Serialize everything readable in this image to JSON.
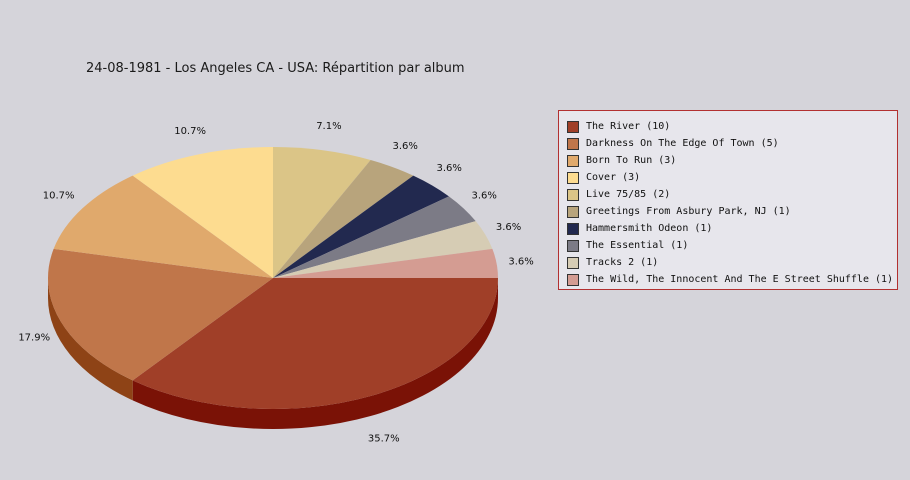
{
  "chart_data": {
    "type": "pie",
    "title": "24-08-1981 - Los Angeles CA - USA:  Répartition par album",
    "legend_position": "right",
    "slices": [
      {
        "label": "The River (10)",
        "value": 10,
        "percent": "35.7%",
        "color": "#a03f28",
        "side_color": "#7a1206"
      },
      {
        "label": "Darkness On The Edge Of Town (5)",
        "value": 5,
        "percent": "17.9%",
        "color": "#c0764a",
        "side_color": "#8e4316"
      },
      {
        "label": "Born To Run (3)",
        "value": 3,
        "percent": "10.7%",
        "color": "#e0a96c",
        "side_color": "#a87938"
      },
      {
        "label": "Cover (3)",
        "value": 3,
        "percent": "10.7%",
        "color": "#fddc90",
        "side_color": "#c9a85c"
      },
      {
        "label": "Live 75/85 (2)",
        "value": 2,
        "percent": "7.1%",
        "color": "#dbc587",
        "side_color": "#a69354"
      },
      {
        "label": "Greetings From Asbury Park, NJ (1)",
        "value": 1,
        "percent": "3.6%",
        "color": "#b8a47c",
        "side_color": "#85724c"
      },
      {
        "label": "Hammersmith Odeon  (1)",
        "value": 1,
        "percent": "3.6%",
        "color": "#22294f",
        "side_color": "#10152e"
      },
      {
        "label": "The Essential (1)",
        "value": 1,
        "percent": "3.6%",
        "color": "#7c7b86",
        "side_color": "#55545e"
      },
      {
        "label": "Tracks 2 (1)",
        "value": 1,
        "percent": "3.6%",
        "color": "#d6ccb4",
        "side_color": "#a59c86"
      },
      {
        "label": "The Wild, The Innocent And The E Street Shuffle (1)",
        "value": 1,
        "percent": "3.6%",
        "color": "#d49c92",
        "side_color": "#a06d64"
      }
    ]
  }
}
